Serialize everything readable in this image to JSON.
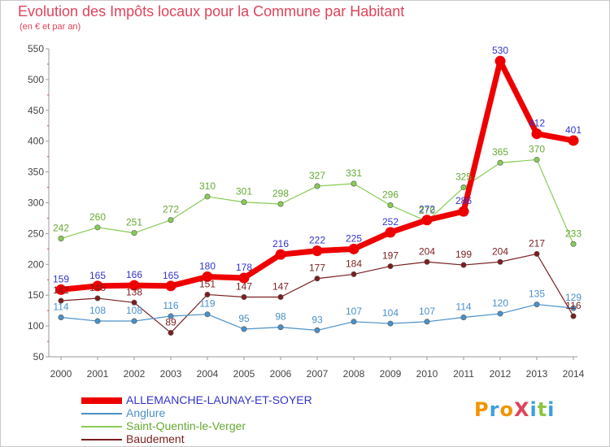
{
  "title": "Evolution des Impôts locaux pour la Commune par Habitant",
  "subtitle": "(en € et par an)",
  "logo": {
    "text": "ProXiti",
    "letters": [
      "P",
      "r",
      "o",
      "X",
      "i",
      "t",
      "i"
    ],
    "colors": [
      "#f29400",
      "#3aa0dc",
      "#f29400",
      "#e0435a",
      "#3aa0dc",
      "#8cc63f",
      "#3aa0dc"
    ]
  },
  "chart_data": {
    "type": "line",
    "title": "Evolution des Impôts locaux pour la Commune par Habitant",
    "subtitle": "(en € et par an)",
    "xlabel": "",
    "ylabel": "",
    "x": [
      2000,
      2001,
      2002,
      2003,
      2004,
      2005,
      2006,
      2007,
      2008,
      2009,
      2010,
      2011,
      2012,
      2013,
      2014
    ],
    "ylim": [
      50,
      550
    ],
    "yticks": [
      50,
      100,
      150,
      200,
      250,
      300,
      350,
      400,
      450,
      500,
      550
    ],
    "grid": false,
    "legend_position": "bottom-left",
    "series": [
      {
        "name": "ALLEMANCHE-LAUNAY-ET-SOYER",
        "color": "#ee0000",
        "label_color": "#3333cc",
        "values": [
          159,
          165,
          166,
          165,
          180,
          178,
          216,
          222,
          225,
          252,
          272,
          286,
          530,
          412,
          401
        ]
      },
      {
        "name": "Anglure",
        "color": "#4a90c8",
        "label_color": "#4a90c8",
        "values": [
          114,
          108,
          108,
          116,
          119,
          95,
          98,
          93,
          107,
          104,
          107,
          114,
          120,
          135,
          129
        ]
      },
      {
        "name": "Saint-Quentin-le-Verger",
        "color": "#88cc55",
        "label_color": "#66aa33",
        "values": [
          242,
          260,
          251,
          272,
          310,
          301,
          298,
          327,
          331,
          296,
          270,
          325,
          365,
          370,
          233
        ]
      },
      {
        "name": "Baudement",
        "color": "#7a1f1f",
        "label_color": "#7a1f1f",
        "values": [
          141,
          145,
          138,
          89,
          151,
          147,
          147,
          177,
          184,
          197,
          204,
          199,
          204,
          217,
          116
        ]
      }
    ]
  }
}
